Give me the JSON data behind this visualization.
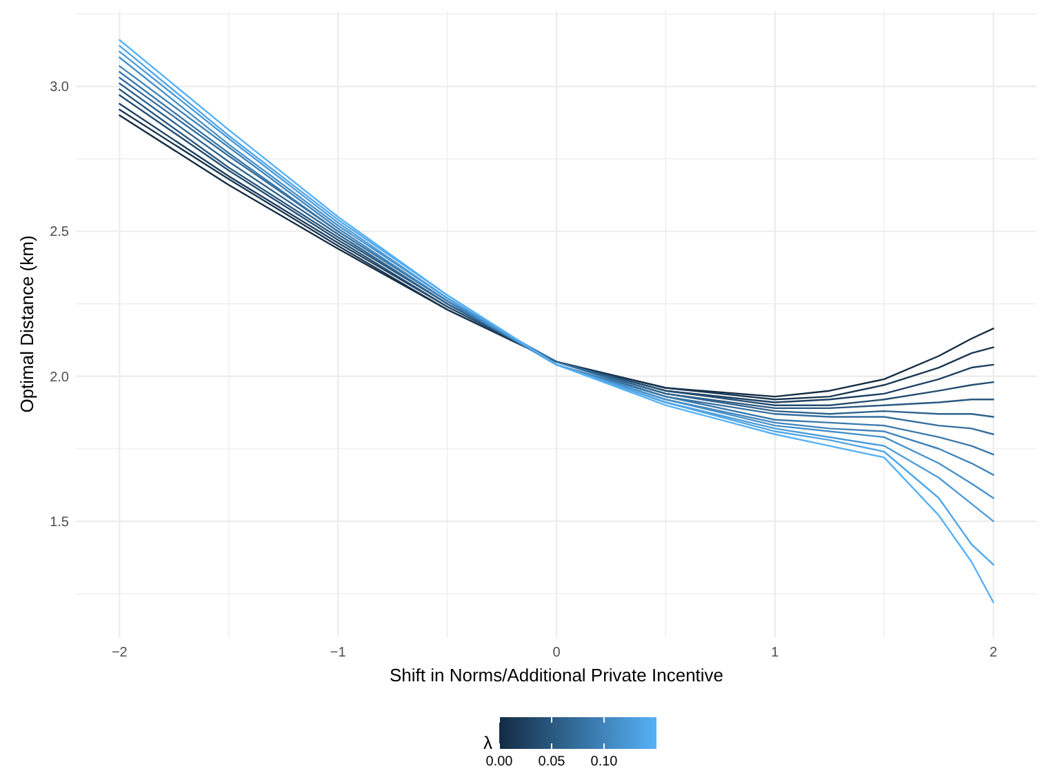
{
  "chart_data": {
    "type": "line",
    "xlabel": "Shift in Norms/Additional Private Incentive",
    "ylabel": "Optimal Distance (km)",
    "clabel": "λ",
    "clim": [
      0,
      0.15
    ],
    "cticks": [
      {
        "value": 0,
        "label": "0.00"
      },
      {
        "value": 0.05,
        "label": "0.05"
      },
      {
        "value": 0.1,
        "label": "0.10"
      }
    ],
    "x": [
      -2,
      -1.5,
      -1,
      -0.5,
      0,
      0.5,
      1,
      1.25,
      1.5,
      1.75,
      1.9,
      2
    ],
    "series": [
      {
        "color": "#132b43",
        "values": [
          2.9,
          2.66,
          2.44,
          2.23,
          2.05,
          1.96,
          1.93,
          1.95,
          1.99,
          2.07,
          2.13,
          2.165
        ]
      },
      {
        "color": "#193652",
        "values": [
          2.92,
          2.68,
          2.45,
          2.23,
          2.05,
          1.96,
          1.92,
          1.93,
          1.97,
          2.03,
          2.08,
          2.1
        ]
      },
      {
        "color": "#1e4161",
        "values": [
          2.94,
          2.69,
          2.46,
          2.24,
          2.05,
          1.95,
          1.91,
          1.92,
          1.94,
          1.99,
          2.03,
          2.04
        ]
      },
      {
        "color": "#244d70",
        "values": [
          2.97,
          2.71,
          2.47,
          2.24,
          2.05,
          1.95,
          1.9,
          1.9,
          1.92,
          1.95,
          1.97,
          1.98
        ]
      },
      {
        "color": "#29587f",
        "values": [
          2.99,
          2.72,
          2.48,
          2.25,
          2.05,
          1.94,
          1.89,
          1.89,
          1.9,
          1.91,
          1.92,
          1.92
        ]
      },
      {
        "color": "#2f638e",
        "values": [
          3.01,
          2.74,
          2.49,
          2.25,
          2.05,
          1.94,
          1.88,
          1.87,
          1.88,
          1.87,
          1.87,
          1.86
        ]
      },
      {
        "color": "#346e9d",
        "values": [
          3.03,
          2.76,
          2.5,
          2.26,
          2.05,
          1.93,
          1.87,
          1.86,
          1.86,
          1.83,
          1.82,
          1.8
        ]
      },
      {
        "color": "#3a79ac",
        "values": [
          3.05,
          2.77,
          2.5,
          2.26,
          2.04,
          1.93,
          1.85,
          1.84,
          1.83,
          1.79,
          1.76,
          1.73
        ]
      },
      {
        "color": "#4084bb",
        "values": [
          3.07,
          2.79,
          2.51,
          2.26,
          2.04,
          1.92,
          1.84,
          1.82,
          1.81,
          1.75,
          1.7,
          1.66
        ]
      },
      {
        "color": "#4590ca",
        "values": [
          3.1,
          2.8,
          2.52,
          2.27,
          2.04,
          1.92,
          1.83,
          1.81,
          1.79,
          1.7,
          1.63,
          1.58
        ]
      },
      {
        "color": "#4b9bd9",
        "values": [
          3.12,
          2.82,
          2.53,
          2.27,
          2.04,
          1.91,
          1.82,
          1.79,
          1.76,
          1.65,
          1.56,
          1.5
        ]
      },
      {
        "color": "#50a6e8",
        "values": [
          3.14,
          2.83,
          2.54,
          2.28,
          2.04,
          1.91,
          1.81,
          1.78,
          1.74,
          1.58,
          1.42,
          1.35
        ]
      },
      {
        "color": "#56b1f7",
        "values": [
          3.16,
          2.85,
          2.55,
          2.28,
          2.04,
          1.9,
          1.8,
          1.76,
          1.72,
          1.52,
          1.36,
          1.22
        ]
      }
    ],
    "xlim": [
      -2.2,
      2.2
    ],
    "ylim": [
      1.1,
      3.26
    ],
    "xticks": [
      {
        "value": -2,
        "label": "−2"
      },
      {
        "value": -1,
        "label": "−1"
      },
      0,
      1,
      2
    ],
    "yticks": [
      1.5,
      {
        "value": 2,
        "label": "2.0"
      },
      2.5,
      {
        "value": 3,
        "label": "3.0"
      }
    ],
    "grid": true,
    "line_style": "solid",
    "marker": "none"
  }
}
